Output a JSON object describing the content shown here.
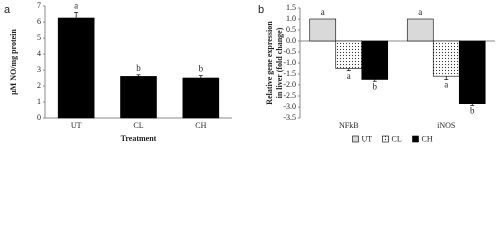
{
  "chart_data": [
    {
      "type": "bar",
      "panel": "a",
      "ylabel": "μM NO/mg protein",
      "xlabel": "Treatment",
      "categories": [
        "UT",
        "CL",
        "CH"
      ],
      "values": [
        6.25,
        2.6,
        2.5
      ],
      "errors": [
        0.35,
        0.1,
        0.15
      ],
      "letters": [
        "a",
        "b",
        "b"
      ],
      "color": "#000000",
      "ylim": [
        0,
        7
      ],
      "yticks": [
        0,
        1,
        2,
        3,
        4,
        5,
        6,
        7
      ]
    },
    {
      "type": "grouped-bar",
      "panel": "b",
      "ylabel": [
        "Relative gene expression",
        "in liver (fold change)"
      ],
      "categories": [
        "NFkB",
        "iNOS"
      ],
      "series": [
        {
          "name": "UT",
          "color": "#d9d9d9",
          "values": [
            1,
            1
          ],
          "letters": [
            "a",
            "a"
          ]
        },
        {
          "name": "CL",
          "color": "#ffffff",
          "pattern": "dots",
          "values": [
            -1.25,
            -1.6
          ],
          "errors": [
            0.1,
            0.15
          ],
          "letters": [
            "a",
            "a"
          ]
        },
        {
          "name": "CH",
          "color": "#000000",
          "values": [
            -1.75,
            -2.85
          ],
          "errors": [
            0.08,
            0.08
          ],
          "letters": [
            "b",
            "b"
          ]
        }
      ],
      "ylim": [
        -3.5,
        1.5
      ],
      "yticks": [
        {
          "value": 1.5,
          "label": "1.5"
        },
        {
          "value": 1,
          "label": "1.0"
        },
        {
          "value": 0.5,
          "label": "0.5"
        },
        {
          "value": 0,
          "label": "0.0"
        },
        -0.5,
        {
          "value": -1,
          "label": "-1.0"
        },
        -1.5,
        {
          "value": -2,
          "label": "-2.0"
        },
        -2.5,
        {
          "value": -3,
          "label": "-3.0"
        },
        -3.5
      ],
      "legend": "bottom"
    }
  ]
}
